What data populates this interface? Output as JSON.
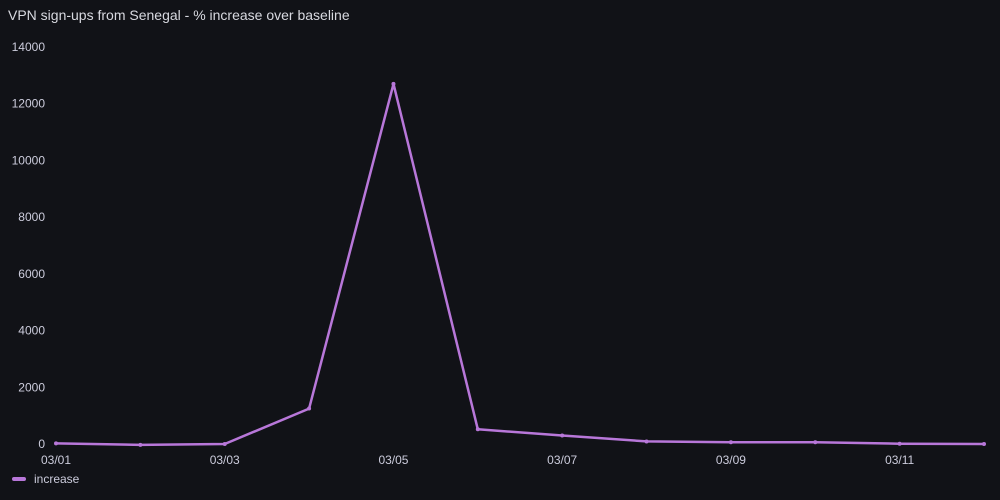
{
  "panel": {
    "title": "VPN sign-ups from Senegal - % increase over baseline"
  },
  "colors": {
    "background": "#111217",
    "series": "#b877d9",
    "tick_text": "#ccccdc",
    "grid": "#2a2b30"
  },
  "chart_data": {
    "type": "line",
    "title": "VPN sign-ups from Senegal - % increase over baseline",
    "xlabel": "",
    "ylabel": "",
    "x": [
      "03/01",
      "03/02",
      "03/03",
      "03/04",
      "03/05",
      "03/06",
      "03/07",
      "03/08",
      "03/09",
      "03/10",
      "03/11",
      "03/12"
    ],
    "x_tick_labels": [
      "03/01",
      "03/03",
      "03/05",
      "03/07",
      "03/09",
      "03/11"
    ],
    "y_tick_labels": [
      "0",
      "2000",
      "4000",
      "6000",
      "8000",
      "10000",
      "12000",
      "14000"
    ],
    "ylim": [
      0,
      14000
    ],
    "series": [
      {
        "name": "increase",
        "values": [
          20,
          -30,
          0,
          1250,
          12700,
          520,
          300,
          90,
          60,
          60,
          10,
          0
        ]
      }
    ],
    "legend_position": "bottom-left"
  }
}
